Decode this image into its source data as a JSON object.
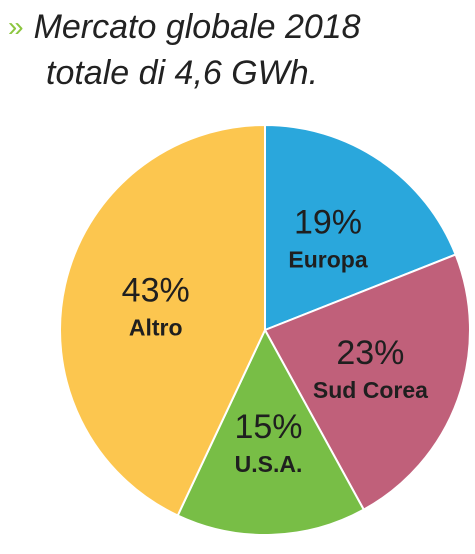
{
  "title": {
    "marker": "»",
    "line1": "Mercato globale 2018",
    "line2": "totale di 4,6 GWh."
  },
  "chart_data": {
    "type": "pie",
    "title": "Mercato globale 2018 totale di 4,6 GWh.",
    "slices": [
      {
        "label": "Europa",
        "value": 19,
        "display": "19%",
        "color": "#2aa7dc"
      },
      {
        "label": "Sud Corea",
        "value": 23,
        "display": "23%",
        "color": "#c0607a"
      },
      {
        "label": "U.S.A.",
        "value": 15,
        "display": "15%",
        "color": "#78be46"
      },
      {
        "label": "Altro",
        "value": 43,
        "display": "43%",
        "color": "#fcc64f"
      }
    ]
  }
}
